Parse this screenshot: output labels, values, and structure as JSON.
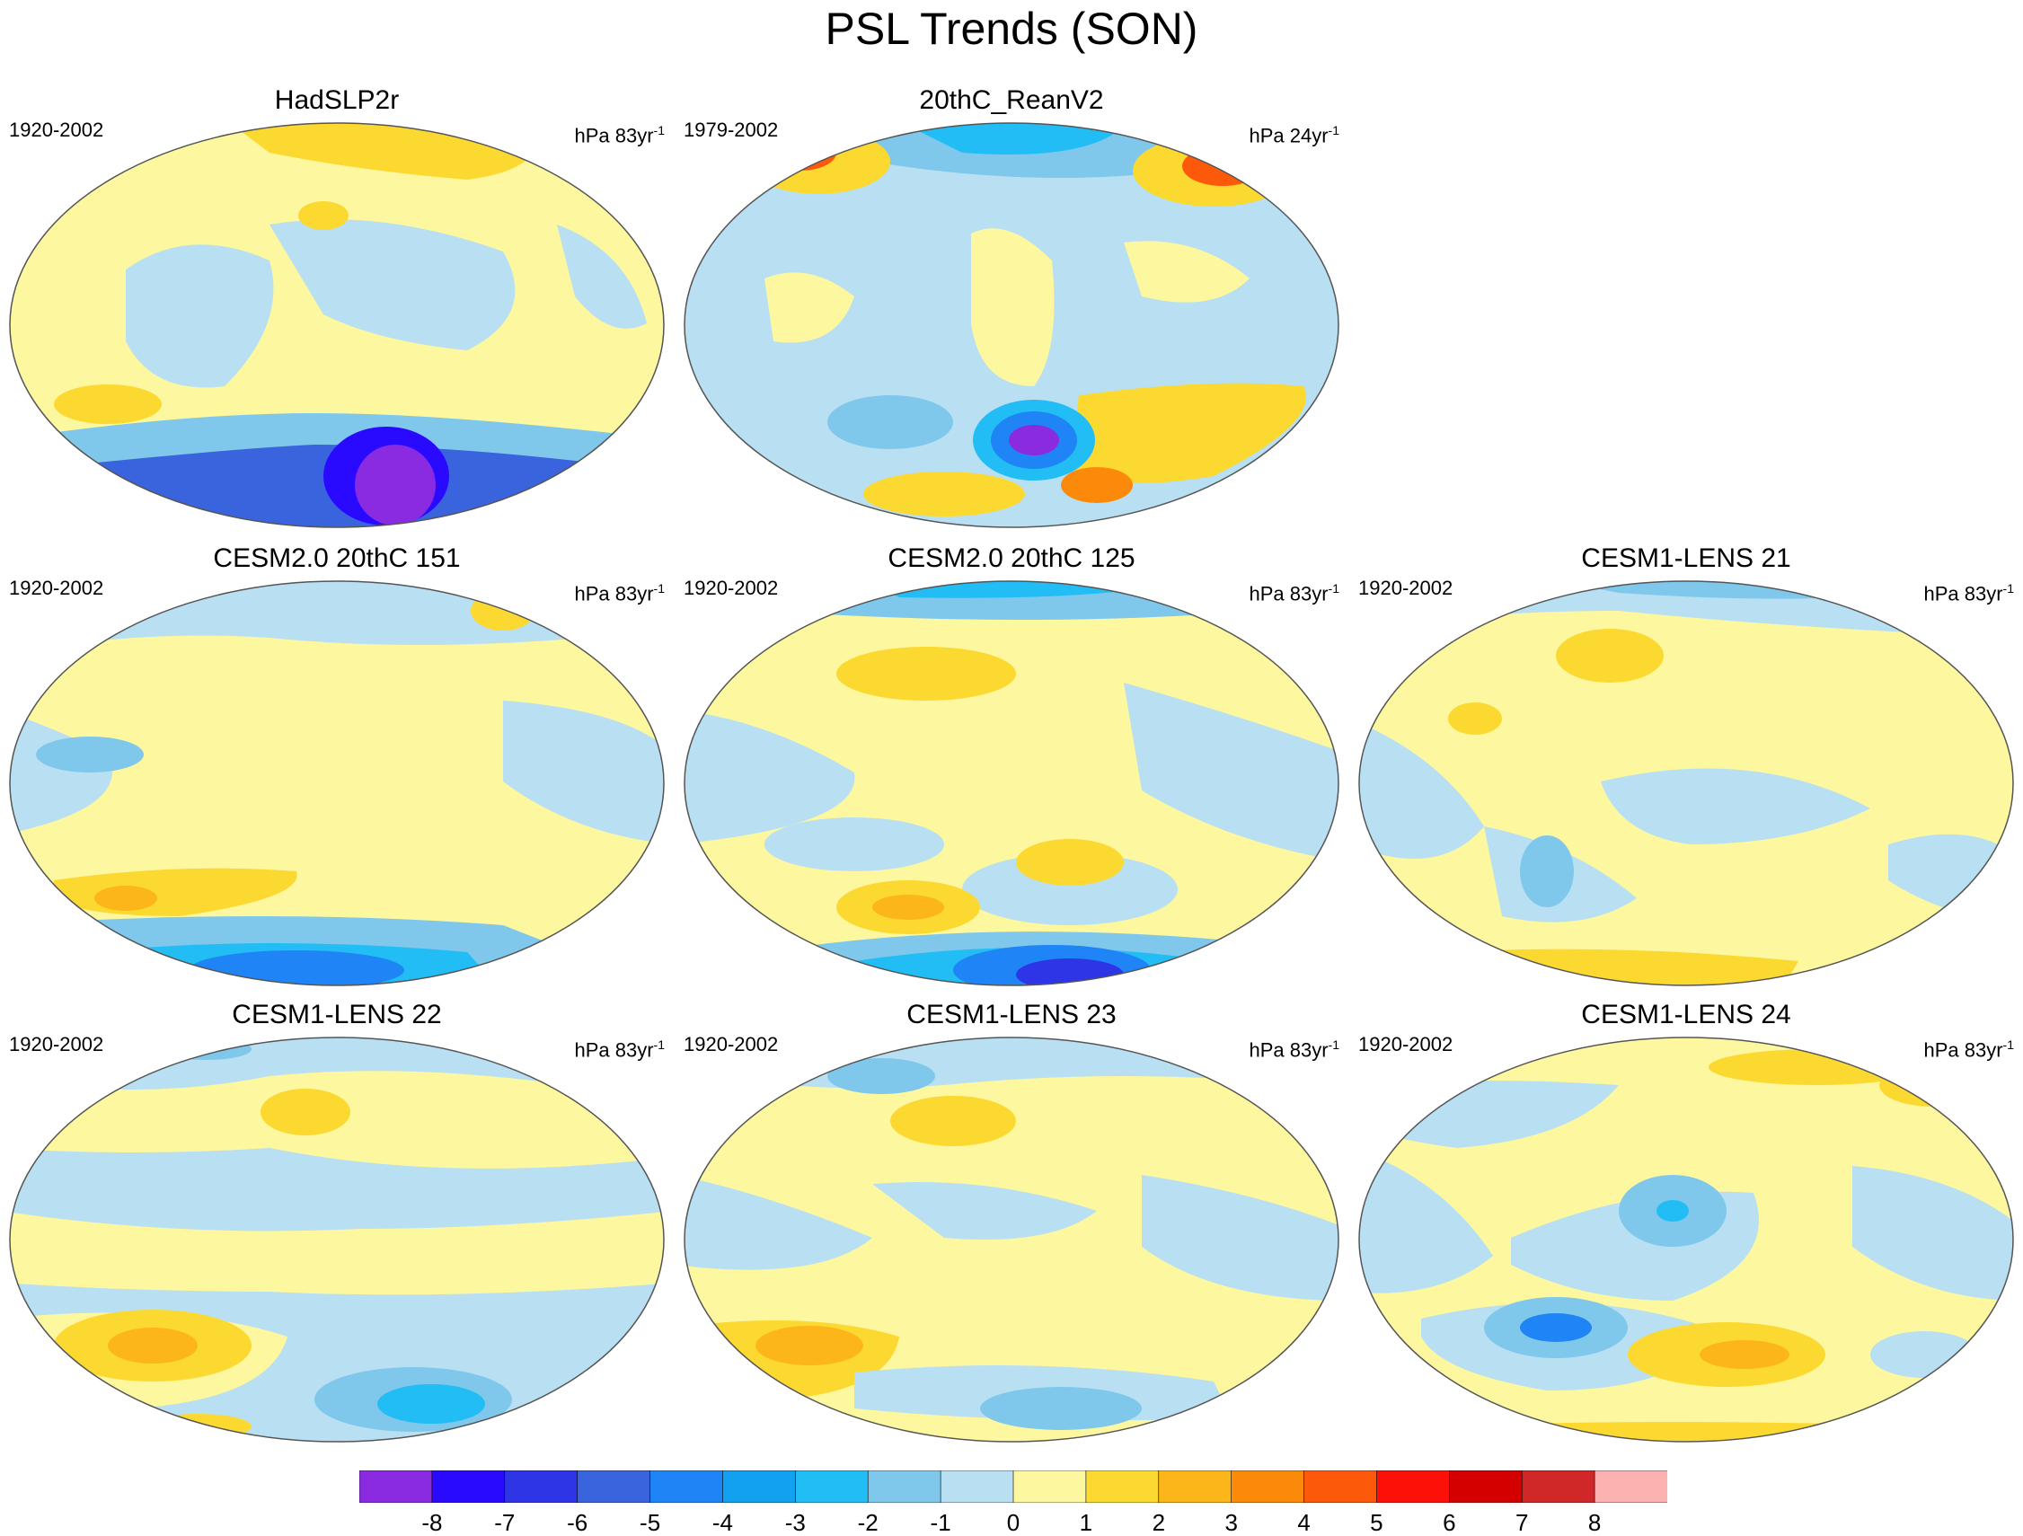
{
  "title": "PSL Trends (SON)",
  "panels": [
    {
      "title": "HadSLP2r",
      "period": "1920-2002",
      "units_prefix": "hPa 83yr",
      "units_exp": "-1"
    },
    {
      "title": "20thC_ReanV2",
      "period": "1979-2002",
      "units_prefix": "hPa 24yr",
      "units_exp": "-1"
    },
    {
      "title": "CESM2.0 20thC 151",
      "period": "1920-2002",
      "units_prefix": "hPa 83yr",
      "units_exp": "-1"
    },
    {
      "title": "CESM2.0 20thC 125",
      "period": "1920-2002",
      "units_prefix": "hPa 83yr",
      "units_exp": "-1"
    },
    {
      "title": "CESM1-LENS 21",
      "period": "1920-2002",
      "units_prefix": "hPa 83yr",
      "units_exp": "-1"
    },
    {
      "title": "CESM1-LENS 22",
      "period": "1920-2002",
      "units_prefix": "hPa 83yr",
      "units_exp": "-1"
    },
    {
      "title": "CESM1-LENS 23",
      "period": "1920-2002",
      "units_prefix": "hPa 83yr",
      "units_exp": "-1"
    },
    {
      "title": "CESM1-LENS 24",
      "period": "1920-2002",
      "units_prefix": "hPa 83yr",
      "units_exp": "-1"
    }
  ],
  "colorbar": {
    "labels": [
      "-8",
      "-7",
      "-6",
      "-5",
      "-4",
      "-3",
      "-2",
      "-1",
      "0",
      "1",
      "2",
      "3",
      "4",
      "5",
      "6",
      "7",
      "8"
    ],
    "colors": [
      "#8a2be2",
      "#2a0aff",
      "#2d35e6",
      "#3a63de",
      "#1f84f5",
      "#12a0f0",
      "#23bdf5",
      "#7fc8ec",
      "#b8e0f2",
      "#fdf7a0",
      "#fcd930",
      "#fcb61a",
      "#fc8a0a",
      "#fc5a0a",
      "#fc1008",
      "#d40000",
      "#d02828",
      "#fdb2b2"
    ]
  },
  "legend_ref": {
    "colorbar": {
      "tick_labels": [
        "-8",
        "-7",
        "-6",
        "-5",
        "-4",
        "-3",
        "-2",
        "-1",
        "0",
        "1",
        "2",
        "3",
        "4",
        "5",
        "6",
        "7",
        "8"
      ]
    }
  }
}
